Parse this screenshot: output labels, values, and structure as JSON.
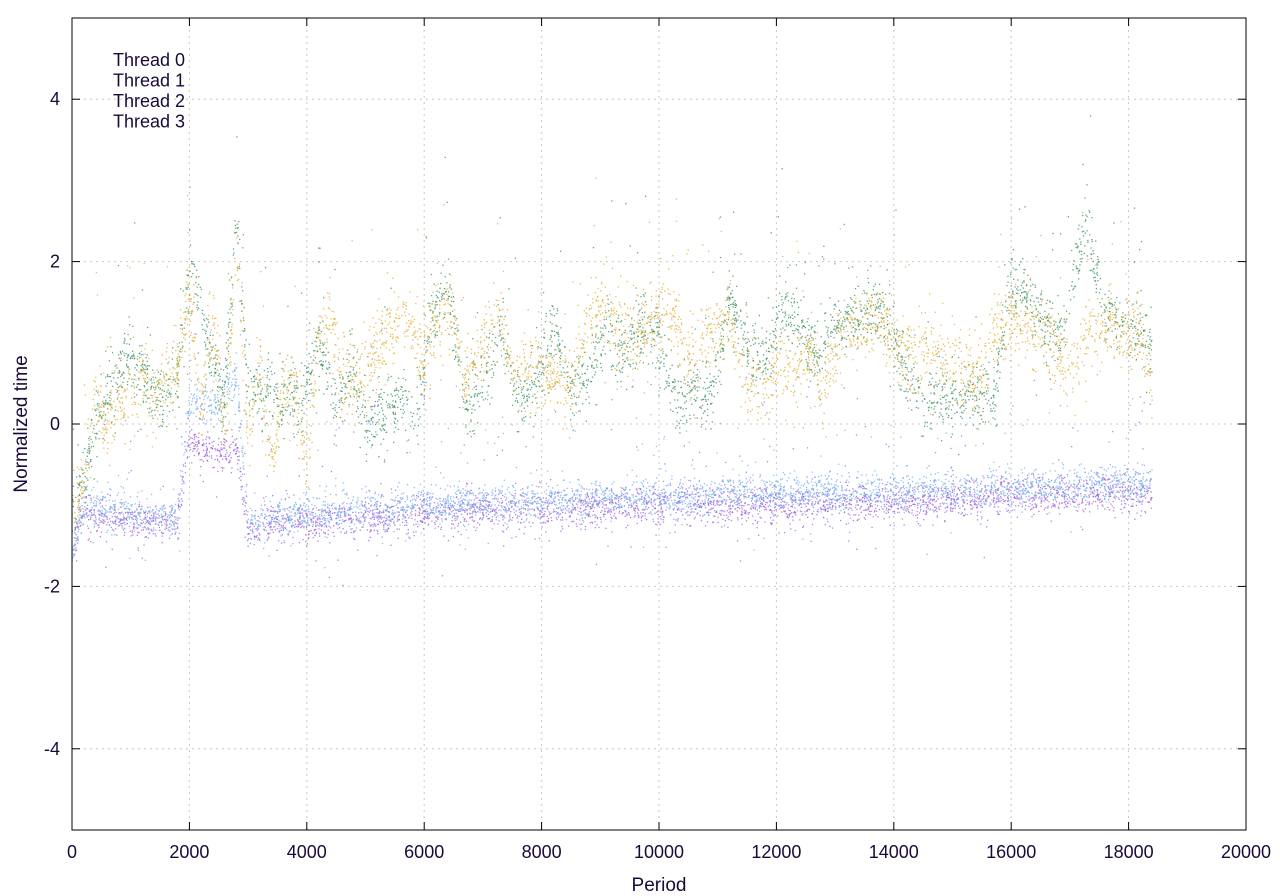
{
  "chart_data": {
    "type": "scatter",
    "title": "",
    "xlabel": "Period",
    "ylabel": "Normalized time",
    "xlim": [
      0,
      20000
    ],
    "ylim": [
      -5,
      5
    ],
    "xticks": [
      0,
      2000,
      4000,
      6000,
      8000,
      10000,
      12000,
      14000,
      16000,
      18000,
      20000
    ],
    "yticks": [
      -4,
      -2,
      0,
      2,
      4
    ],
    "xtick_labels": [
      "0",
      "2000",
      "4000",
      "6000",
      "8000",
      "10000",
      "12000",
      "14000",
      "16000",
      "18000",
      "20000"
    ],
    "ytick_labels": [
      "-4",
      "-2",
      "0",
      "2",
      "4"
    ],
    "grid": true,
    "legend_position": "top-left",
    "series": [
      {
        "name": "Thread 0",
        "color": "#9b59d9",
        "trend": [
          [
            0,
            -1.6
          ],
          [
            200,
            -1.1
          ],
          [
            500,
            -1.15
          ],
          [
            1000,
            -1.2
          ],
          [
            1800,
            -1.25
          ],
          [
            2000,
            -0.2
          ],
          [
            2500,
            -0.4
          ],
          [
            2800,
            -0.3
          ],
          [
            3000,
            -1.3
          ],
          [
            4000,
            -1.2
          ],
          [
            6000,
            -1.1
          ],
          [
            8000,
            -1.05
          ],
          [
            10000,
            -1.0
          ],
          [
            12000,
            -1.0
          ],
          [
            14000,
            -0.95
          ],
          [
            16000,
            -0.9
          ],
          [
            18000,
            -0.85
          ],
          [
            18400,
            -0.9
          ]
        ],
        "spread": 0.12,
        "x_max": 18400
      },
      {
        "name": "Thread 1",
        "color": "#e0a820",
        "trend": [
          [
            0,
            -1.2
          ],
          [
            200,
            -0.7
          ],
          [
            400,
            0.4
          ],
          [
            600,
            -0.1
          ],
          [
            800,
            0.4
          ],
          [
            1000,
            0.3
          ],
          [
            1200,
            0.6
          ],
          [
            1400,
            0.3
          ],
          [
            1600,
            0.5
          ],
          [
            1800,
            0.7
          ],
          [
            2000,
            1.6
          ],
          [
            2200,
            0.1
          ],
          [
            2400,
            1.3
          ],
          [
            2600,
            -0.2
          ],
          [
            2800,
            2.2
          ],
          [
            3000,
            -0.2
          ],
          [
            3200,
            0.7
          ],
          [
            3400,
            -0.4
          ],
          [
            3600,
            0.4
          ],
          [
            3800,
            0.5
          ],
          [
            4000,
            -0.6
          ],
          [
            4200,
            1.1
          ],
          [
            4400,
            1.3
          ],
          [
            4600,
            0.6
          ],
          [
            5000,
            0.5
          ],
          [
            5200,
            0.9
          ],
          [
            5400,
            1.2
          ],
          [
            5700,
            1.3
          ],
          [
            6000,
            0.8
          ],
          [
            6200,
            1.3
          ],
          [
            6500,
            1.4
          ],
          [
            6700,
            0.5
          ],
          [
            7000,
            1.0
          ],
          [
            7300,
            1.3
          ],
          [
            7600,
            0.5
          ],
          [
            7900,
            0.8
          ],
          [
            8200,
            0.6
          ],
          [
            8500,
            0.4
          ],
          [
            8700,
            1.1
          ],
          [
            9000,
            1.5
          ],
          [
            9300,
            1.2
          ],
          [
            9600,
            1.1
          ],
          [
            9900,
            1.3
          ],
          [
            10200,
            1.4
          ],
          [
            10500,
            0.8
          ],
          [
            10800,
            1.1
          ],
          [
            11200,
            1.3
          ],
          [
            11500,
            0.5
          ],
          [
            11800,
            0.4
          ],
          [
            12000,
            0.8
          ],
          [
            12300,
            0.6
          ],
          [
            12600,
            1.0
          ],
          [
            12800,
            0.4
          ],
          [
            13100,
            1.1
          ],
          [
            13400,
            1.2
          ],
          [
            13700,
            1.3
          ],
          [
            14000,
            1.0
          ],
          [
            14300,
            0.8
          ],
          [
            14700,
            0.8
          ],
          [
            15100,
            0.7
          ],
          [
            15400,
            0.5
          ],
          [
            15700,
            1.1
          ],
          [
            16000,
            1.3
          ],
          [
            16300,
            1.2
          ],
          [
            16700,
            1.0
          ],
          [
            17000,
            0.6
          ],
          [
            17300,
            1.1
          ],
          [
            17600,
            1.2
          ],
          [
            18000,
            1.1
          ],
          [
            18300,
            1.0
          ],
          [
            18400,
            0.4
          ]
        ],
        "spread": 0.22,
        "x_max": 18400
      },
      {
        "name": "Thread 2",
        "color": "#2e8b57",
        "trend": [
          [
            0,
            -1.4
          ],
          [
            300,
            -0.3
          ],
          [
            600,
            0.4
          ],
          [
            900,
            0.8
          ],
          [
            1200,
            0.6
          ],
          [
            1500,
            0.3
          ],
          [
            1800,
            0.6
          ],
          [
            2000,
            2.0
          ],
          [
            2300,
            1.0
          ],
          [
            2600,
            0.3
          ],
          [
            2800,
            2.6
          ],
          [
            3000,
            0.4
          ],
          [
            3300,
            0.5
          ],
          [
            3600,
            0.3
          ],
          [
            3900,
            0.3
          ],
          [
            4200,
            1.0
          ],
          [
            4500,
            0.3
          ],
          [
            4800,
            0.7
          ],
          [
            5000,
            -0.1
          ],
          [
            5300,
            0.1
          ],
          [
            5600,
            0.3
          ],
          [
            5900,
            0.1
          ],
          [
            6100,
            1.3
          ],
          [
            6400,
            1.7
          ],
          [
            6700,
            0.2
          ],
          [
            7000,
            0.5
          ],
          [
            7300,
            1.2
          ],
          [
            7600,
            0.3
          ],
          [
            7900,
            0.4
          ],
          [
            8200,
            1.2
          ],
          [
            8500,
            0.4
          ],
          [
            8800,
            0.6
          ],
          [
            9100,
            1.2
          ],
          [
            9400,
            0.9
          ],
          [
            9700,
            1.2
          ],
          [
            10000,
            1.1
          ],
          [
            10300,
            0.2
          ],
          [
            10600,
            0.5
          ],
          [
            10900,
            0.3
          ],
          [
            11200,
            1.5
          ],
          [
            11500,
            0.9
          ],
          [
            11800,
            0.7
          ],
          [
            12100,
            1.4
          ],
          [
            12400,
            1.2
          ],
          [
            12700,
            0.8
          ],
          [
            13000,
            1.2
          ],
          [
            13300,
            1.3
          ],
          [
            13600,
            1.4
          ],
          [
            13900,
            1.4
          ],
          [
            14200,
            0.5
          ],
          [
            14600,
            0.3
          ],
          [
            15000,
            0.3
          ],
          [
            15400,
            0.4
          ],
          [
            15700,
            0.3
          ],
          [
            16000,
            1.8
          ],
          [
            16300,
            1.5
          ],
          [
            16600,
            1.2
          ],
          [
            16900,
            1.2
          ],
          [
            17300,
            2.5
          ],
          [
            17600,
            1.4
          ],
          [
            18000,
            1.2
          ],
          [
            18300,
            1.1
          ],
          [
            18400,
            1.0
          ]
        ],
        "spread": 0.2,
        "x_max": 18400
      },
      {
        "name": "Thread 3",
        "color": "#6aa8f0",
        "trend": [
          [
            0,
            -1.7
          ],
          [
            200,
            -1.0
          ],
          [
            500,
            -1.05
          ],
          [
            1000,
            -1.1
          ],
          [
            1800,
            -1.15
          ],
          [
            2000,
            0.3
          ],
          [
            2500,
            0.2
          ],
          [
            2800,
            0.6
          ],
          [
            3000,
            -1.2
          ],
          [
            4000,
            -1.1
          ],
          [
            6000,
            -1.0
          ],
          [
            8000,
            -0.95
          ],
          [
            10000,
            -0.9
          ],
          [
            12000,
            -0.85
          ],
          [
            14000,
            -0.85
          ],
          [
            16000,
            -0.8
          ],
          [
            18000,
            -0.75
          ],
          [
            18400,
            -0.7
          ]
        ],
        "spread": 0.12,
        "x_max": 18400
      }
    ]
  }
}
